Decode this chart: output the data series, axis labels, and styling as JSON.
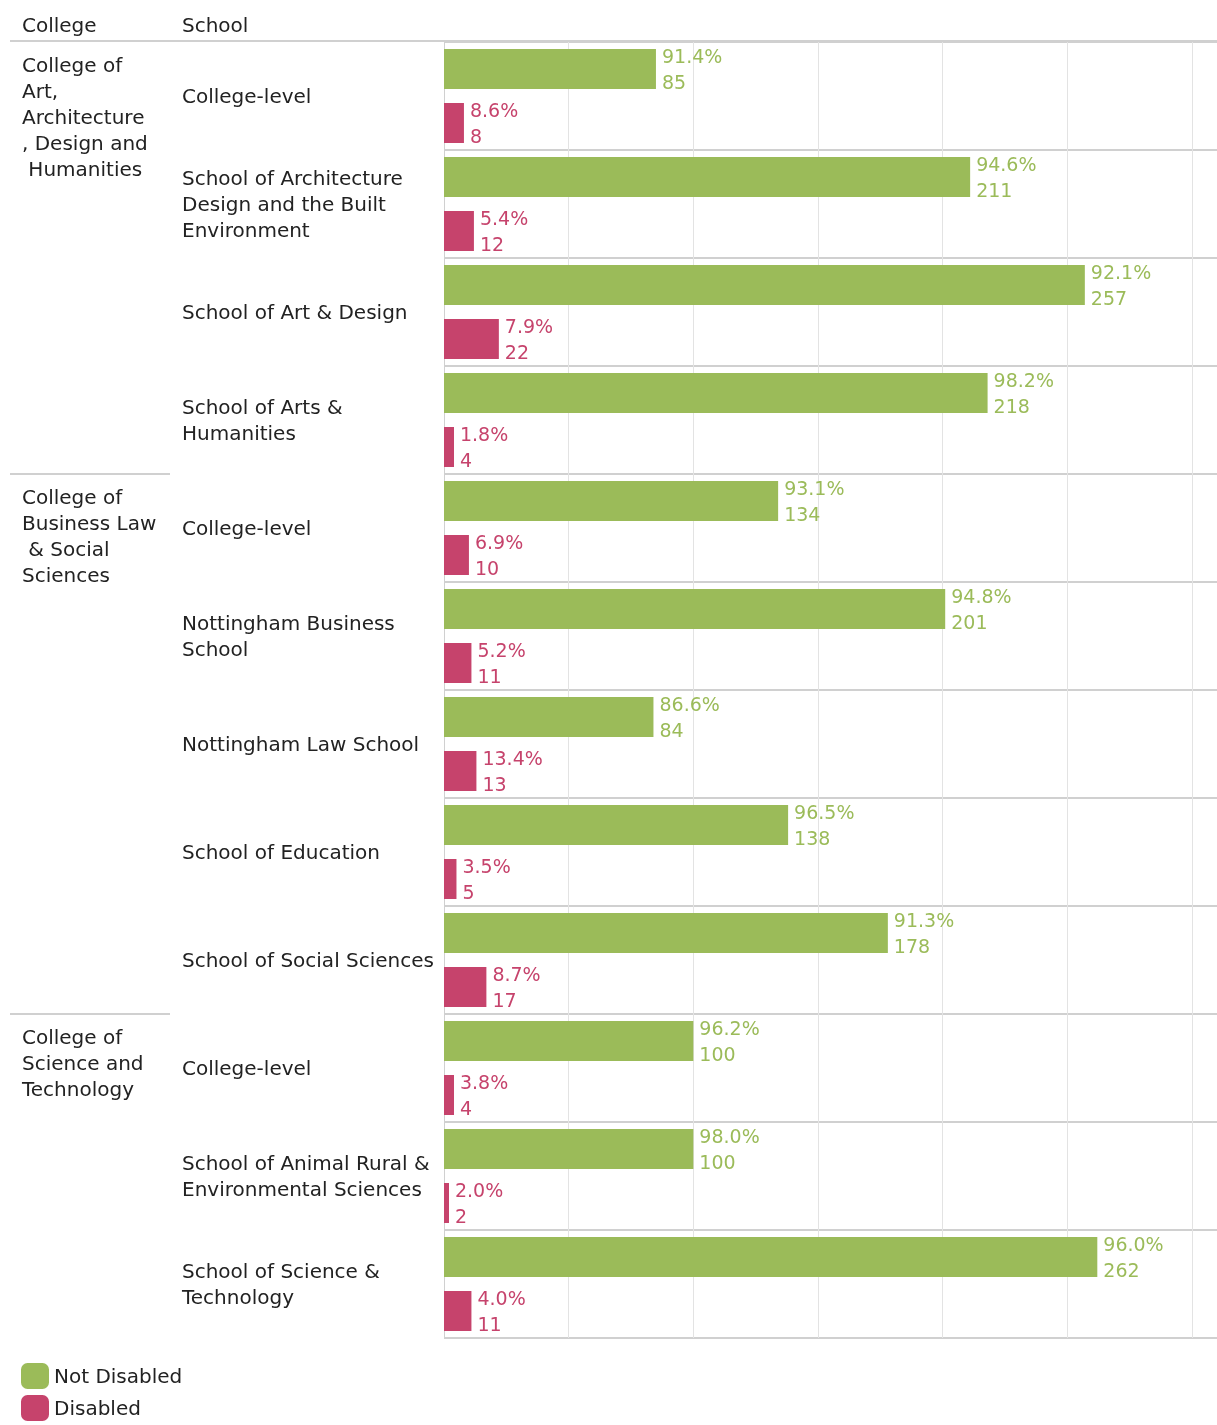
{
  "chart_data": {
    "type": "bar",
    "orientation": "horizontal",
    "ylabel": "School",
    "categories": [
      "College-level",
      "School of Architecture Design and the Built Environment",
      "School of Art & Design",
      "School of Arts & Humanities",
      "College-level",
      "Nottingham Business School",
      "Nottingham Law School",
      "School of Education",
      "School of Social Sciences",
      "College-level",
      "School of Animal Rural & Environmental Sciences",
      "School of Science & Technology"
    ],
    "series": [
      {
        "name": "Not Disabled",
        "color": "#9bbb59",
        "values": [
          85,
          211,
          257,
          218,
          134,
          201,
          84,
          138,
          178,
          100,
          100,
          262
        ],
        "value_labels": [
          "91.4%\n85",
          "94.6%\n211",
          "92.1%\n257",
          "98.2%\n218",
          "93.1%\n134",
          "94.8%\n201",
          "86.6%\n84",
          "96.5%\n138",
          "91.3%\n178",
          "96.2%\n100",
          "98.0%\n100",
          "96.0%\n262"
        ]
      },
      {
        "name": "Disabled",
        "color": "#c6436c",
        "values": [
          8,
          12,
          22,
          4,
          10,
          11,
          13,
          5,
          17,
          4,
          2,
          11
        ],
        "value_labels": [
          "8.6%\n8",
          "5.4%\n12",
          "7.9%\n22",
          "1.8%\n4",
          "6.9%\n10",
          "5.2%\n11",
          "13.4%\n13",
          "3.5%\n5",
          "8.7%\n17",
          "3.8%\n4",
          "2.0%\n2",
          "4.0%\n11"
        ]
      }
    ],
    "annotations": [
      "College",
      "College of Art, Architecture, Design and Humanities",
      "College of Business Law & Social Sciences",
      "College of Science and Technology"
    ],
    "xlim": [
      0,
      310
    ],
    "xticks": [
      {
        "value": 0,
        "label": null
      },
      {
        "value": 50,
        "label": null
      },
      {
        "value": 100,
        "label": null
      },
      {
        "value": 150,
        "label": null
      },
      {
        "value": 200,
        "label": null
      },
      {
        "value": 250,
        "label": null
      },
      {
        "value": 300,
        "label": null
      }
    ],
    "tick_labels": "y",
    "grid": true,
    "legend": "bottom left"
  }
}
